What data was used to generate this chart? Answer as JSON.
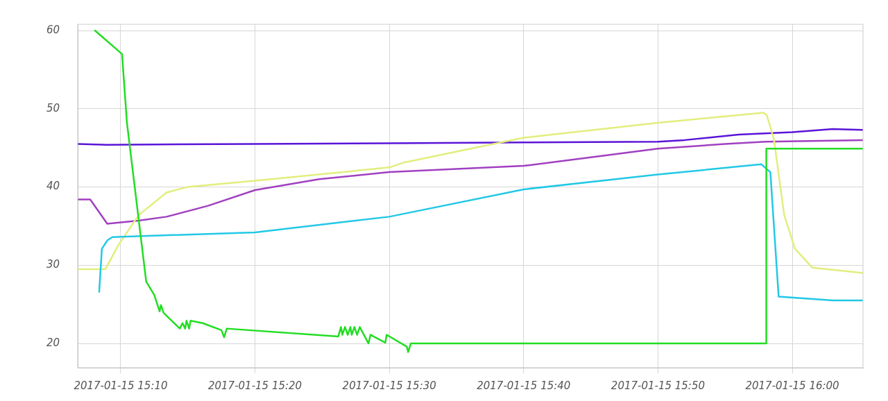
{
  "chart_data": {
    "type": "line",
    "xlim": [
      "2017-01-15T15:06:48",
      "2017-01-15T16:05:16"
    ],
    "ylim": [
      16.9,
      60.8
    ],
    "xticks": [
      {
        "value": "2017-01-15T15:10",
        "label": "2017-01-15 15:10"
      },
      {
        "value": "2017-01-15T15:20",
        "label": "2017-01-15 15:20"
      },
      {
        "value": "2017-01-15T15:30",
        "label": "2017-01-15 15:30"
      },
      {
        "value": "2017-01-15T15:40",
        "label": "2017-01-15 15:40"
      },
      {
        "value": "2017-01-15T15:50",
        "label": "2017-01-15 15:50"
      },
      {
        "value": "2017-01-15T16:00",
        "label": "2017-01-15 16:00"
      }
    ],
    "yticks": [
      20,
      30,
      40,
      50,
      60
    ],
    "grid": true,
    "legend": false,
    "marker": "none",
    "line_style": "solid",
    "series": [
      {
        "color": "#5a14d8",
        "x": [
          "2017-01-15T15:06:48",
          "2017-01-15T15:09:00",
          "2017-01-15T15:20",
          "2017-01-15T15:30",
          "2017-01-15T15:40",
          "2017-01-15T15:50",
          "2017-01-15T15:52",
          "2017-01-15T15:56",
          "2017-01-15T16:00",
          "2017-01-15T16:03",
          "2017-01-15T16:05:16"
        ],
        "values": [
          45.5,
          45.4,
          45.5,
          45.6,
          45.7,
          45.8,
          46.0,
          46.7,
          47.0,
          47.4,
          47.3
        ]
      },
      {
        "color": "#a040c0",
        "x": [
          "2017-01-15T15:06:48",
          "2017-01-15T15:07:44",
          "2017-01-15T15:09:00",
          "2017-01-15T15:11:20",
          "2017-01-15T15:13:25",
          "2017-01-15T15:16:30",
          "2017-01-15T15:20",
          "2017-01-15T15:24:47",
          "2017-01-15T15:30",
          "2017-01-15T15:40",
          "2017-01-15T15:45",
          "2017-01-15T15:50",
          "2017-01-15T15:55",
          "2017-01-15T15:58",
          "2017-01-15T16:05:16"
        ],
        "values": [
          38.4,
          38.4,
          35.3,
          35.7,
          36.2,
          37.6,
          39.6,
          41.0,
          41.9,
          42.7,
          43.8,
          44.9,
          45.5,
          45.8,
          46.0
        ]
      },
      {
        "color": "#e2ee7c",
        "x": [
          "2017-01-15T15:06:48",
          "2017-01-15T15:08:52",
          "2017-01-15T15:09:48",
          "2017-01-15T15:11:20",
          "2017-01-15T15:13:25",
          "2017-01-15T15:14:58",
          "2017-01-15T15:20",
          "2017-01-15T15:30",
          "2017-01-15T15:31:02",
          "2017-01-15T15:37:11",
          "2017-01-15T15:40",
          "2017-01-15T15:50",
          "2017-01-15T15:57:51",
          "2017-01-15T15:58:06",
          "2017-01-15T15:58:38",
          "2017-01-15T15:59:24",
          "2017-01-15T16:00:12",
          "2017-01-15T16:01:29",
          "2017-01-15T16:05:16"
        ],
        "values": [
          29.5,
          29.5,
          32.5,
          36.4,
          39.3,
          40.0,
          40.8,
          42.5,
          43.1,
          45.3,
          46.3,
          48.2,
          49.5,
          49.2,
          46.1,
          36.4,
          32.1,
          29.7,
          29.0
        ]
      },
      {
        "color": "#22c8e6",
        "x": [
          "2017-01-15T15:08:24",
          "2017-01-15T15:08:36",
          "2017-01-15T15:09:01",
          "2017-01-15T15:09:23",
          "2017-01-15T15:20",
          "2017-01-15T15:30",
          "2017-01-15T15:40",
          "2017-01-15T15:50",
          "2017-01-15T15:57:42",
          "2017-01-15T15:58:22",
          "2017-01-15T15:58:59",
          "2017-01-15T16:03",
          "2017-01-15T16:05:16"
        ],
        "values": [
          26.6,
          32.1,
          33.2,
          33.6,
          34.2,
          36.2,
          39.7,
          41.6,
          42.9,
          41.9,
          26.0,
          25.5,
          25.5
        ]
      },
      {
        "color": "#22dd22",
        "x": [
          "2017-01-15T15:08:05",
          "2017-01-15T15:10:06",
          "2017-01-15T15:10:28",
          "2017-01-15T15:11:54",
          "2017-01-15T15:12:30",
          "2017-01-15T15:12:54",
          "2017-01-15T15:13:00",
          "2017-01-15T15:13:12",
          "2017-01-15T15:14:24",
          "2017-01-15T15:14:36",
          "2017-01-15T15:14:48",
          "2017-01-15T15:14:54",
          "2017-01-15T15:15:06",
          "2017-01-15T15:15:12",
          "2017-01-15T15:16:06",
          "2017-01-15T15:17:30",
          "2017-01-15T15:17:42",
          "2017-01-15T15:17:54",
          "2017-01-15T15:26:12",
          "2017-01-15T15:26:24",
          "2017-01-15T15:26:30",
          "2017-01-15T15:26:42",
          "2017-01-15T15:26:54",
          "2017-01-15T15:27:06",
          "2017-01-15T15:27:12",
          "2017-01-15T15:27:24",
          "2017-01-15T15:27:36",
          "2017-01-15T15:27:48",
          "2017-01-15T15:28:27",
          "2017-01-15T15:28:36",
          "2017-01-15T15:29:42",
          "2017-01-15T15:29:48",
          "2017-01-15T15:30:06",
          "2017-01-15T15:31:18",
          "2017-01-15T15:31:24",
          "2017-01-15T15:31:36",
          "2017-01-15T15:58:04",
          "2017-01-15T15:58:04",
          "2017-01-15T16:05:16"
        ],
        "values": [
          60,
          57,
          48.2,
          27.9,
          26.2,
          24.1,
          24.9,
          23.9,
          21.9,
          22.6,
          21.9,
          22.9,
          21.9,
          22.9,
          22.6,
          21.7,
          20.8,
          21.9,
          20.9,
          22.1,
          21.1,
          22.1,
          21.1,
          22.1,
          21.1,
          22.1,
          21.1,
          22.1,
          20,
          21.1,
          20.1,
          21.1,
          20.8,
          19.6,
          18.9,
          20,
          20,
          44.9,
          44.9
        ]
      }
    ]
  }
}
